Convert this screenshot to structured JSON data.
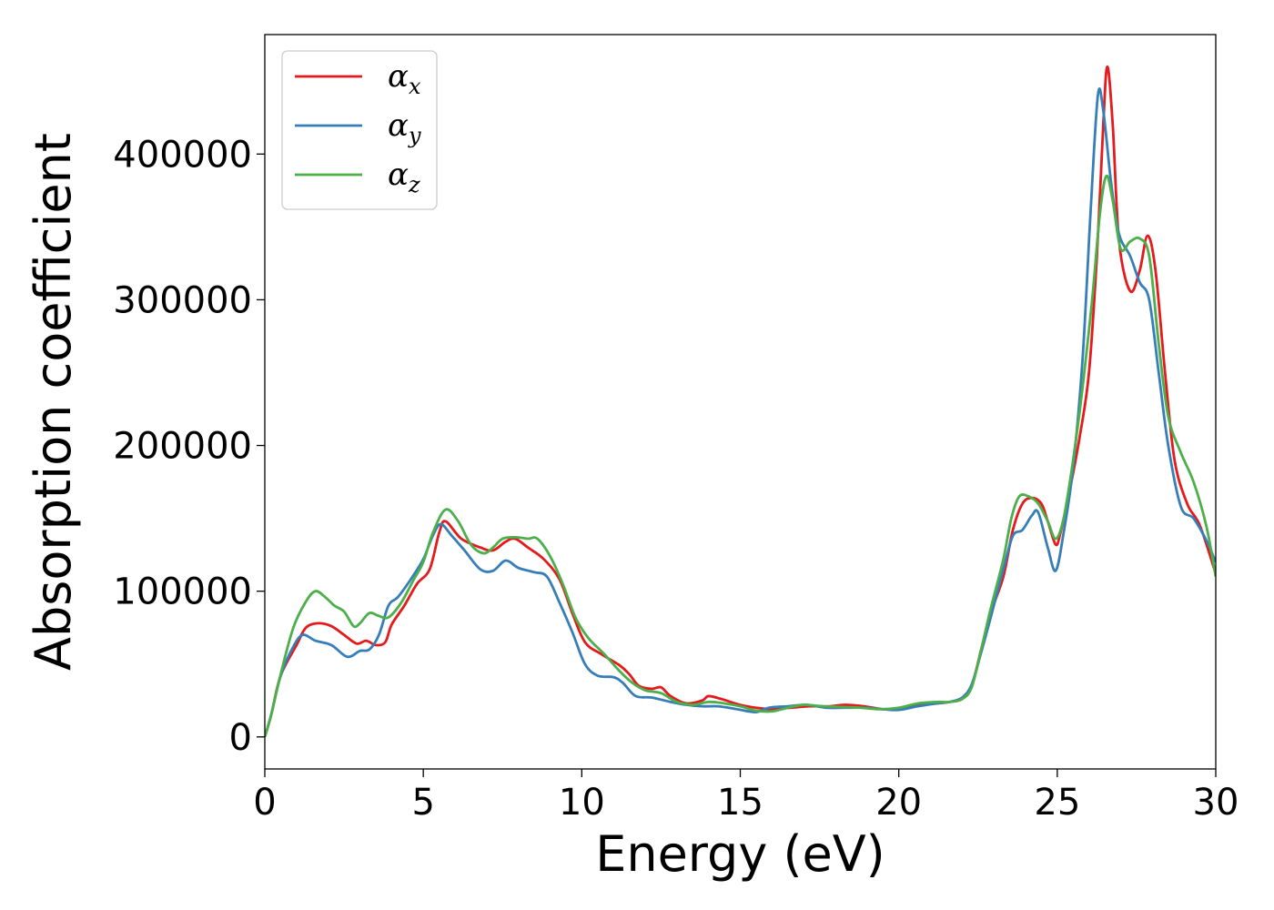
{
  "chart_data": {
    "type": "line",
    "title": "",
    "xlabel": "Energy (eV)",
    "ylabel": "Absorption coefficient",
    "xlim": [
      0,
      30
    ],
    "ylim": [
      -22000,
      482000
    ],
    "xticks": [
      0,
      5,
      10,
      15,
      20,
      25,
      30
    ],
    "yticks": [
      0,
      100000,
      200000,
      300000,
      400000
    ],
    "grid": false,
    "legend": {
      "position": "top-left"
    },
    "series": [
      {
        "name": "αx",
        "symbol": "α",
        "subscript": "x",
        "color": "#e41a1c",
        "points": [
          [
            0,
            0
          ],
          [
            0.2,
            15000
          ],
          [
            0.5,
            42000
          ],
          [
            1.0,
            63000
          ],
          [
            1.3,
            75000
          ],
          [
            1.7,
            78000
          ],
          [
            2.1,
            76000
          ],
          [
            2.5,
            70000
          ],
          [
            2.9,
            64000
          ],
          [
            3.2,
            66000
          ],
          [
            3.5,
            63000
          ],
          [
            3.8,
            65000
          ],
          [
            4.0,
            77000
          ],
          [
            4.4,
            90000
          ],
          [
            4.8,
            105000
          ],
          [
            5.2,
            115000
          ],
          [
            5.5,
            140000
          ],
          [
            5.7,
            148000
          ],
          [
            6.2,
            136000
          ],
          [
            6.8,
            130000
          ],
          [
            7.2,
            128000
          ],
          [
            7.6,
            134000
          ],
          [
            7.9,
            136000
          ],
          [
            8.3,
            130000
          ],
          [
            8.8,
            122000
          ],
          [
            9.3,
            108000
          ],
          [
            9.7,
            85000
          ],
          [
            10.1,
            65000
          ],
          [
            10.6,
            57000
          ],
          [
            11.2,
            49000
          ],
          [
            11.5,
            43000
          ],
          [
            11.8,
            35000
          ],
          [
            12.2,
            33000
          ],
          [
            12.5,
            34000
          ],
          [
            12.8,
            28000
          ],
          [
            13.3,
            23000
          ],
          [
            13.8,
            25000
          ],
          [
            14.0,
            28000
          ],
          [
            14.4,
            26000
          ],
          [
            15.0,
            22000
          ],
          [
            15.5,
            20000
          ],
          [
            16.0,
            19000
          ],
          [
            16.6,
            20000
          ],
          [
            17.2,
            21000
          ],
          [
            17.8,
            21000
          ],
          [
            18.3,
            22000
          ],
          [
            18.9,
            21000
          ],
          [
            19.5,
            19000
          ],
          [
            20.0,
            19500
          ],
          [
            20.5,
            22000
          ],
          [
            21.2,
            23000
          ],
          [
            21.6,
            24000
          ],
          [
            22.0,
            26000
          ],
          [
            22.3,
            35000
          ],
          [
            22.6,
            60000
          ],
          [
            22.9,
            85000
          ],
          [
            23.3,
            110000
          ],
          [
            23.6,
            142000
          ],
          [
            23.9,
            160000
          ],
          [
            24.2,
            164000
          ],
          [
            24.5,
            160000
          ],
          [
            24.7,
            148000
          ],
          [
            24.95,
            132000
          ],
          [
            25.1,
            140000
          ],
          [
            25.4,
            170000
          ],
          [
            25.7,
            205000
          ],
          [
            26.0,
            250000
          ],
          [
            26.25,
            330000
          ],
          [
            26.45,
            420000
          ],
          [
            26.58,
            460000
          ],
          [
            26.75,
            420000
          ],
          [
            26.95,
            340000
          ],
          [
            27.3,
            306000
          ],
          [
            27.6,
            320000
          ],
          [
            27.85,
            344000
          ],
          [
            28.1,
            320000
          ],
          [
            28.4,
            250000
          ],
          [
            28.7,
            190000
          ],
          [
            29.1,
            160000
          ],
          [
            29.5,
            145000
          ],
          [
            30.0,
            112000
          ]
        ]
      },
      {
        "name": "αy",
        "symbol": "α",
        "subscript": "y",
        "color": "#377eb8",
        "points": [
          [
            0,
            0
          ],
          [
            0.2,
            15000
          ],
          [
            0.5,
            42000
          ],
          [
            0.9,
            62000
          ],
          [
            1.2,
            70000
          ],
          [
            1.6,
            66000
          ],
          [
            2.1,
            63000
          ],
          [
            2.6,
            55000
          ],
          [
            3.0,
            59000
          ],
          [
            3.3,
            60000
          ],
          [
            3.6,
            70000
          ],
          [
            3.9,
            90000
          ],
          [
            4.2,
            96000
          ],
          [
            4.6,
            108000
          ],
          [
            5.0,
            122000
          ],
          [
            5.3,
            138000
          ],
          [
            5.55,
            146000
          ],
          [
            5.9,
            138000
          ],
          [
            6.3,
            128000
          ],
          [
            6.8,
            115000
          ],
          [
            7.2,
            114000
          ],
          [
            7.6,
            121000
          ],
          [
            8.0,
            116000
          ],
          [
            8.5,
            113000
          ],
          [
            8.9,
            110000
          ],
          [
            9.3,
            92000
          ],
          [
            9.7,
            72000
          ],
          [
            10.1,
            50000
          ],
          [
            10.5,
            42000
          ],
          [
            11.0,
            41000
          ],
          [
            11.3,
            37000
          ],
          [
            11.7,
            28000
          ],
          [
            12.2,
            27000
          ],
          [
            12.8,
            24000
          ],
          [
            13.3,
            22000
          ],
          [
            13.8,
            21000
          ],
          [
            14.3,
            21000
          ],
          [
            14.9,
            19000
          ],
          [
            15.5,
            17000
          ],
          [
            15.9,
            20000
          ],
          [
            16.5,
            21000
          ],
          [
            17.1,
            22000
          ],
          [
            17.7,
            20000
          ],
          [
            18.3,
            20000
          ],
          [
            18.9,
            20000
          ],
          [
            19.5,
            19000
          ],
          [
            20.0,
            18500
          ],
          [
            20.6,
            21000
          ],
          [
            21.2,
            23000
          ],
          [
            21.6,
            24000
          ],
          [
            22.0,
            27000
          ],
          [
            22.3,
            36000
          ],
          [
            22.6,
            58000
          ],
          [
            22.9,
            82000
          ],
          [
            23.3,
            115000
          ],
          [
            23.6,
            138000
          ],
          [
            23.9,
            142000
          ],
          [
            24.2,
            152000
          ],
          [
            24.4,
            154000
          ],
          [
            24.7,
            130000
          ],
          [
            24.95,
            114000
          ],
          [
            25.2,
            140000
          ],
          [
            25.5,
            185000
          ],
          [
            25.8,
            260000
          ],
          [
            26.05,
            360000
          ],
          [
            26.28,
            440000
          ],
          [
            26.45,
            430000
          ],
          [
            26.7,
            380000
          ],
          [
            26.95,
            345000
          ],
          [
            27.3,
            330000
          ],
          [
            27.6,
            312000
          ],
          [
            27.9,
            300000
          ],
          [
            28.2,
            250000
          ],
          [
            28.5,
            200000
          ],
          [
            28.9,
            158000
          ],
          [
            29.3,
            150000
          ],
          [
            29.7,
            135000
          ],
          [
            30.0,
            120000
          ]
        ]
      },
      {
        "name": "αz",
        "symbol": "α",
        "subscript": "z",
        "color": "#4daf4a",
        "points": [
          [
            0,
            0
          ],
          [
            0.2,
            15000
          ],
          [
            0.5,
            43000
          ],
          [
            0.9,
            75000
          ],
          [
            1.3,
            93000
          ],
          [
            1.6,
            100000
          ],
          [
            1.9,
            96000
          ],
          [
            2.2,
            90000
          ],
          [
            2.5,
            86000
          ],
          [
            2.8,
            76000
          ],
          [
            3.0,
            78000
          ],
          [
            3.3,
            85000
          ],
          [
            3.6,
            83000
          ],
          [
            3.9,
            82000
          ],
          [
            4.3,
            92000
          ],
          [
            4.7,
            108000
          ],
          [
            5.0,
            120000
          ],
          [
            5.3,
            140000
          ],
          [
            5.7,
            156000
          ],
          [
            6.1,
            148000
          ],
          [
            6.5,
            132000
          ],
          [
            6.9,
            126000
          ],
          [
            7.2,
            130000
          ],
          [
            7.5,
            136000
          ],
          [
            7.9,
            137000
          ],
          [
            8.3,
            136000
          ],
          [
            8.6,
            136000
          ],
          [
            9.0,
            124000
          ],
          [
            9.4,
            105000
          ],
          [
            9.8,
            82000
          ],
          [
            10.2,
            68000
          ],
          [
            10.7,
            57000
          ],
          [
            11.2,
            45000
          ],
          [
            11.6,
            37000
          ],
          [
            12.0,
            32000
          ],
          [
            12.5,
            30000
          ],
          [
            13.0,
            24000
          ],
          [
            13.5,
            22000
          ],
          [
            14.0,
            24000
          ],
          [
            14.5,
            23000
          ],
          [
            15.0,
            21000
          ],
          [
            15.5,
            18000
          ],
          [
            16.0,
            17500
          ],
          [
            16.5,
            20000
          ],
          [
            17.0,
            22000
          ],
          [
            17.6,
            21000
          ],
          [
            18.2,
            20500
          ],
          [
            18.8,
            20000
          ],
          [
            19.4,
            19000
          ],
          [
            20.0,
            20000
          ],
          [
            20.6,
            23000
          ],
          [
            21.2,
            24000
          ],
          [
            21.6,
            24000
          ],
          [
            22.0,
            26000
          ],
          [
            22.3,
            34000
          ],
          [
            22.6,
            60000
          ],
          [
            22.9,
            88000
          ],
          [
            23.3,
            122000
          ],
          [
            23.55,
            150000
          ],
          [
            23.8,
            165000
          ],
          [
            24.1,
            165000
          ],
          [
            24.4,
            160000
          ],
          [
            24.7,
            148000
          ],
          [
            24.95,
            136000
          ],
          [
            25.2,
            150000
          ],
          [
            25.5,
            190000
          ],
          [
            25.8,
            240000
          ],
          [
            26.1,
            300000
          ],
          [
            26.35,
            360000
          ],
          [
            26.55,
            385000
          ],
          [
            26.75,
            368000
          ],
          [
            27.0,
            335000
          ],
          [
            27.3,
            340000
          ],
          [
            27.6,
            342000
          ],
          [
            27.9,
            330000
          ],
          [
            28.2,
            270000
          ],
          [
            28.5,
            220000
          ],
          [
            28.9,
            195000
          ],
          [
            29.3,
            175000
          ],
          [
            29.7,
            145000
          ],
          [
            30.0,
            110000
          ]
        ]
      }
    ]
  }
}
